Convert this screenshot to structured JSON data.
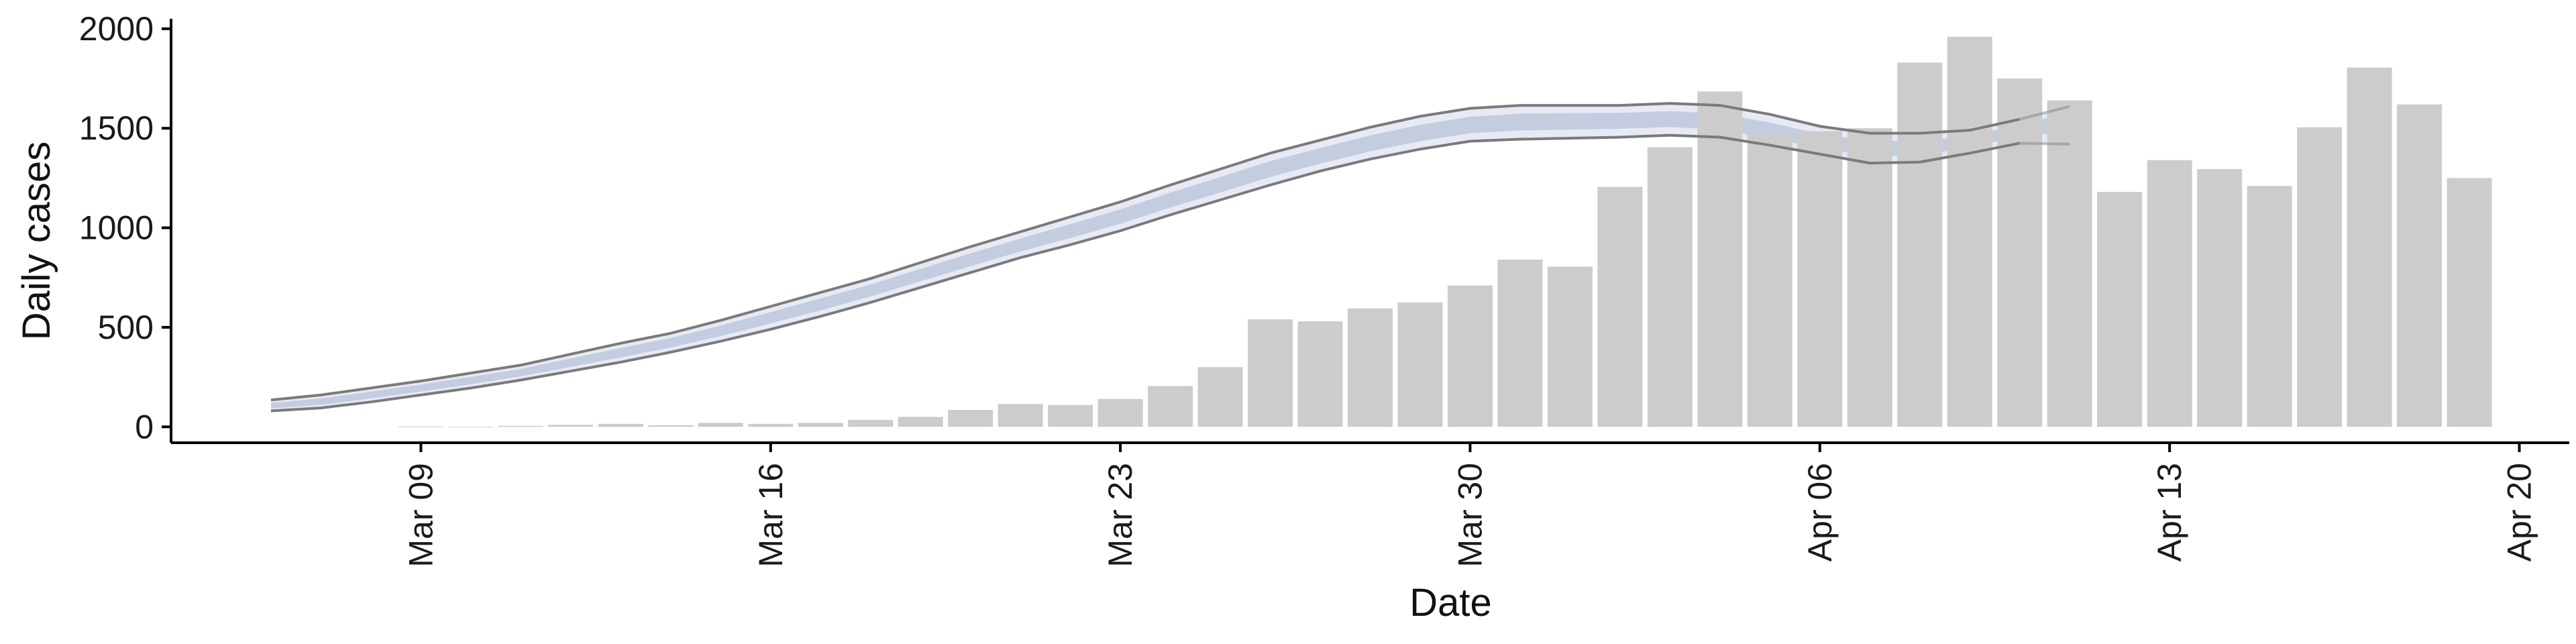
{
  "chart_data": {
    "type": "bar",
    "xlabel": "Date",
    "ylabel": "Daily cases",
    "ylim": [
      -80,
      2050
    ],
    "y_ticks": [
      0,
      500,
      1000,
      1500,
      2000
    ],
    "y_tick_labels": [
      "0",
      "500",
      "1000",
      "1500",
      "2000"
    ],
    "x_ticks": [
      "2020-03-09",
      "2020-03-16",
      "2020-03-23",
      "2020-03-30",
      "2020-04-06",
      "2020-04-13",
      "2020-04-20"
    ],
    "x_tick_labels": [
      "Mar 09",
      "Mar 16",
      "Mar 23",
      "Mar 30",
      "Apr 06",
      "Apr 13",
      "Apr 20"
    ],
    "xlim": [
      "2020-03-04",
      "2020-04-21"
    ],
    "grid": false,
    "legend": "none",
    "bars": {
      "color": "#cccccc",
      "dates": [
        "2020-03-09",
        "2020-03-10",
        "2020-03-11",
        "2020-03-12",
        "2020-03-13",
        "2020-03-14",
        "2020-03-15",
        "2020-03-16",
        "2020-03-17",
        "2020-03-18",
        "2020-03-19",
        "2020-03-20",
        "2020-03-21",
        "2020-03-22",
        "2020-03-23",
        "2020-03-24",
        "2020-03-25",
        "2020-03-26",
        "2020-03-27",
        "2020-03-28",
        "2020-03-29",
        "2020-03-30",
        "2020-03-31",
        "2020-04-01",
        "2020-04-02",
        "2020-04-03",
        "2020-04-04",
        "2020-04-05",
        "2020-04-06",
        "2020-04-07",
        "2020-04-08",
        "2020-04-09",
        "2020-04-10",
        "2020-04-11",
        "2020-04-12",
        "2020-04-13",
        "2020-04-14",
        "2020-04-15",
        "2020-04-16",
        "2020-04-17",
        "2020-04-18",
        "2020-04-19"
      ],
      "values": [
        2,
        0,
        5,
        10,
        15,
        8,
        20,
        15,
        20,
        35,
        50,
        85,
        115,
        110,
        140,
        205,
        300,
        540,
        530,
        595,
        625,
        710,
        840,
        805,
        1205,
        1405,
        1685,
        1470,
        1485,
        1500,
        1830,
        1960,
        1750,
        1640,
        1180,
        1340,
        1295,
        1210,
        1505,
        1805,
        1620,
        1250
      ]
    },
    "estimate": {
      "line_color": "#7a7a7a",
      "band_color": "#b8c1d9",
      "dates": [
        "2020-03-06",
        "2020-03-07",
        "2020-03-08",
        "2020-03-09",
        "2020-03-10",
        "2020-03-11",
        "2020-03-12",
        "2020-03-13",
        "2020-03-14",
        "2020-03-15",
        "2020-03-16",
        "2020-03-17",
        "2020-03-18",
        "2020-03-19",
        "2020-03-20",
        "2020-03-21",
        "2020-03-22",
        "2020-03-23",
        "2020-03-24",
        "2020-03-25",
        "2020-03-26",
        "2020-03-27",
        "2020-03-28",
        "2020-03-29",
        "2020-03-30",
        "2020-03-31",
        "2020-04-01",
        "2020-04-02",
        "2020-04-03",
        "2020-04-04",
        "2020-04-05",
        "2020-04-06",
        "2020-04-07",
        "2020-04-08",
        "2020-04-09",
        "2020-04-10"
      ],
      "upper": [
        135,
        160,
        195,
        230,
        270,
        310,
        365,
        420,
        470,
        535,
        605,
        675,
        745,
        825,
        905,
        980,
        1055,
        1130,
        1215,
        1295,
        1375,
        1440,
        1505,
        1560,
        1600,
        1615,
        1615,
        1615,
        1625,
        1615,
        1570,
        1510,
        1475,
        1475,
        1490,
        1545
      ],
      "mean": [
        105,
        125,
        160,
        195,
        232,
        272,
        322,
        372,
        422,
        482,
        548,
        615,
        685,
        762,
        838,
        912,
        982,
        1055,
        1138,
        1215,
        1295,
        1360,
        1423,
        1475,
        1515,
        1532,
        1537,
        1540,
        1547,
        1532,
        1487,
        1432,
        1397,
        1397,
        1432,
        1495
      ],
      "lower": [
        80,
        95,
        125,
        160,
        195,
        235,
        280,
        325,
        375,
        430,
        490,
        555,
        625,
        700,
        775,
        850,
        915,
        985,
        1065,
        1140,
        1215,
        1285,
        1345,
        1395,
        1435,
        1445,
        1450,
        1455,
        1465,
        1455,
        1415,
        1370,
        1325,
        1330,
        1375,
        1425
      ],
      "projection_upper": [
        1610
      ],
      "projection_mean": [
        1545
      ],
      "projection_lower": [
        1420
      ],
      "projection_dates": [
        "2020-04-11"
      ]
    }
  }
}
